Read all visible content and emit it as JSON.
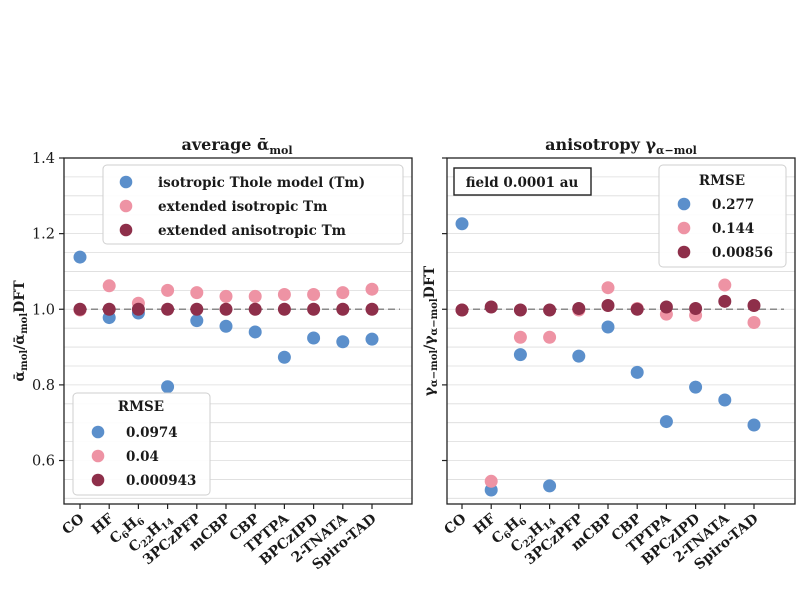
{
  "colors": {
    "isotropic": "#5b8fcb",
    "extended_iso": "#ee93a4",
    "extended_aniso": "#8e2f4a",
    "ref_line": "#8a8a8a"
  },
  "chart_data": [
    {
      "type": "scatter",
      "title": "average ᾱ",
      "title_sub": "mol",
      "ylabel": "ᾱmol/ᾱmolDFT",
      "ylabel_parts": {
        "a": "ᾱ",
        "a_sub": "mol",
        "slash": "/",
        "b": "ᾱ",
        "b_sub": "mol",
        "tail": "DFT"
      },
      "ylim": [
        0.485,
        1.4
      ],
      "yticks": [
        "0.6",
        "0.8",
        "1.0",
        "1.2",
        "1.4"
      ],
      "categories": [
        "CO",
        "HF",
        "C6H6",
        "C22H14",
        "3PCzPFP",
        "mCBP",
        "CBP",
        "TPTPA",
        "BPCzIPD",
        "2-TNATA",
        "Spiro-TAD"
      ],
      "reference_line": 1.0,
      "series": [
        {
          "name": "isotropic Thole model (Tm)",
          "values": [
            1.138,
            0.978,
            0.99,
            0.795,
            0.97,
            0.955,
            0.94,
            0.873,
            0.924,
            0.914,
            0.921
          ]
        },
        {
          "name": "extended isotropic Tm",
          "values": [
            0.998,
            1.062,
            1.016,
            1.05,
            1.044,
            1.034,
            1.034,
            1.039,
            1.039,
            1.044,
            1.053
          ]
        },
        {
          "name": "extended anisotropic Tm",
          "values": [
            1.0,
            1.0,
            1.0,
            1.0,
            1.0,
            1.0,
            1.0,
            1.0,
            1.0,
            1.0,
            1.0
          ]
        }
      ],
      "legend_location": "upper-right",
      "rmse_title": "RMSE",
      "rmse": [
        "0.0974",
        "0.04",
        "0.000943"
      ],
      "rmse_location": "lower-left"
    },
    {
      "type": "scatter",
      "title": "anisotropy γ",
      "title_sub": "α−mol",
      "ylabel": "γα−mol/γα−molDFT",
      "ylabel_parts": {
        "a": "γ",
        "a_sub": "α−mol",
        "slash": "/",
        "b": "γ",
        "b_sub": "α−mol",
        "tail": "DFT"
      },
      "ylim": [
        0.485,
        1.4
      ],
      "yticks": [],
      "categories": [
        "CO",
        "HF",
        "C6H6",
        "C22H14",
        "3PCzPFP",
        "mCBP",
        "CBP",
        "TPTPA",
        "BPCzIPD",
        "2-TNATA",
        "Spiro-TAD"
      ],
      "reference_line": 1.0,
      "series": [
        {
          "name": "isotropic Thole model (Tm)",
          "values": [
            1.226,
            0.522,
            0.88,
            0.533,
            0.876,
            0.953,
            0.833,
            0.703,
            0.794,
            0.76,
            0.694
          ]
        },
        {
          "name": "extended isotropic Tm",
          "values": [
            0.998,
            0.545,
            0.926,
            0.926,
            0.998,
            1.057,
            1.002,
            0.987,
            0.984,
            1.064,
            0.965
          ]
        },
        {
          "name": "extended anisotropic Tm",
          "values": [
            0.998,
            1.006,
            0.998,
            0.998,
            1.002,
            1.01,
            1.0,
            1.006,
            1.002,
            1.021,
            1.01
          ]
        }
      ],
      "annotation": "field 0.0001 au",
      "rmse_title": "RMSE",
      "rmse": [
        "0.277",
        "0.144",
        "0.00856"
      ],
      "rmse_location": "upper-right"
    }
  ]
}
